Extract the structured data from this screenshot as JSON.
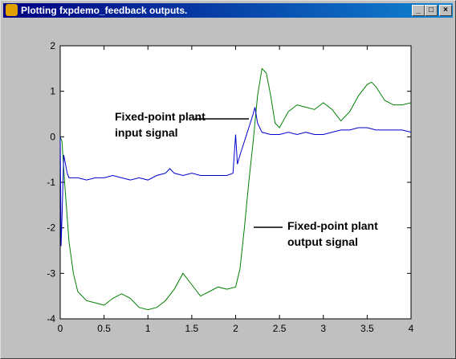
{
  "window": {
    "title": "Plotting fxpdemo_feedback outputs."
  },
  "chart_data": {
    "type": "line",
    "xlim": [
      0,
      4
    ],
    "ylim": [
      -4,
      2
    ],
    "xticks": [
      0,
      0.5,
      1,
      1.5,
      2,
      2.5,
      3,
      3.5,
      4
    ],
    "yticks": [
      -4,
      -3,
      -2,
      -1,
      0,
      1,
      2
    ],
    "series": [
      {
        "color": "#008000",
        "x": [
          0,
          0.02,
          0.05,
          0.1,
          0.15,
          0.2,
          0.3,
          0.4,
          0.5,
          0.6,
          0.7,
          0.8,
          0.9,
          1.0,
          1.1,
          1.2,
          1.3,
          1.4,
          1.5,
          1.6,
          1.7,
          1.8,
          1.9,
          2.0,
          2.05,
          2.1,
          2.15,
          2.2,
          2.25,
          2.3,
          2.35,
          2.4,
          2.45,
          2.5,
          2.6,
          2.7,
          2.8,
          2.9,
          3.0,
          3.1,
          3.2,
          3.3,
          3.4,
          3.5,
          3.55,
          3.6,
          3.7,
          3.8,
          3.9,
          4.0
        ],
        "values": [
          0,
          -0.1,
          -1.0,
          -2.3,
          -3.0,
          -3.4,
          -3.6,
          -3.65,
          -3.7,
          -3.55,
          -3.45,
          -3.55,
          -3.75,
          -3.8,
          -3.75,
          -3.6,
          -3.35,
          -3.0,
          -3.25,
          -3.5,
          -3.4,
          -3.3,
          -3.35,
          -3.3,
          -2.9,
          -2.0,
          -1.0,
          -0.1,
          0.9,
          1.5,
          1.4,
          0.9,
          0.3,
          0.2,
          0.55,
          0.7,
          0.65,
          0.6,
          0.75,
          0.6,
          0.35,
          0.55,
          0.9,
          1.15,
          1.2,
          1.1,
          0.8,
          0.7,
          0.7,
          0.75
        ]
      },
      {
        "color": "#0000cc",
        "x": [
          0,
          0.01,
          0.02,
          0.04,
          0.08,
          0.1,
          0.2,
          0.3,
          0.4,
          0.5,
          0.6,
          0.7,
          0.8,
          0.9,
          1.0,
          1.1,
          1.2,
          1.25,
          1.3,
          1.4,
          1.5,
          1.6,
          1.7,
          1.8,
          1.9,
          1.97,
          2.0,
          2.02,
          2.05,
          2.1,
          2.15,
          2.2,
          2.22,
          2.25,
          2.3,
          2.4,
          2.5,
          2.6,
          2.7,
          2.8,
          2.9,
          3.0,
          3.1,
          3.2,
          3.3,
          3.4,
          3.5,
          3.6,
          3.7,
          3.8,
          3.9,
          4.0
        ],
        "values": [
          0,
          -2.4,
          -1.8,
          -0.4,
          -0.8,
          -0.9,
          -0.9,
          -0.95,
          -0.9,
          -0.9,
          -0.85,
          -0.9,
          -0.95,
          -0.9,
          -0.95,
          -0.85,
          -0.8,
          -0.7,
          -0.8,
          -0.85,
          -0.8,
          -0.85,
          -0.85,
          -0.85,
          -0.85,
          -0.8,
          0.05,
          -0.6,
          -0.4,
          -0.1,
          0.2,
          0.5,
          0.65,
          0.3,
          0.1,
          0.05,
          0.05,
          0.1,
          0.05,
          0.1,
          0.05,
          0.05,
          0.1,
          0.15,
          0.15,
          0.2,
          0.2,
          0.15,
          0.15,
          0.15,
          0.15,
          0.1
        ]
      }
    ],
    "annotations": [
      {
        "lines": [
          "Fixed-point plant",
          "input signal"
        ]
      },
      {
        "lines": [
          "Fixed-point plant",
          "output signal"
        ]
      }
    ]
  }
}
